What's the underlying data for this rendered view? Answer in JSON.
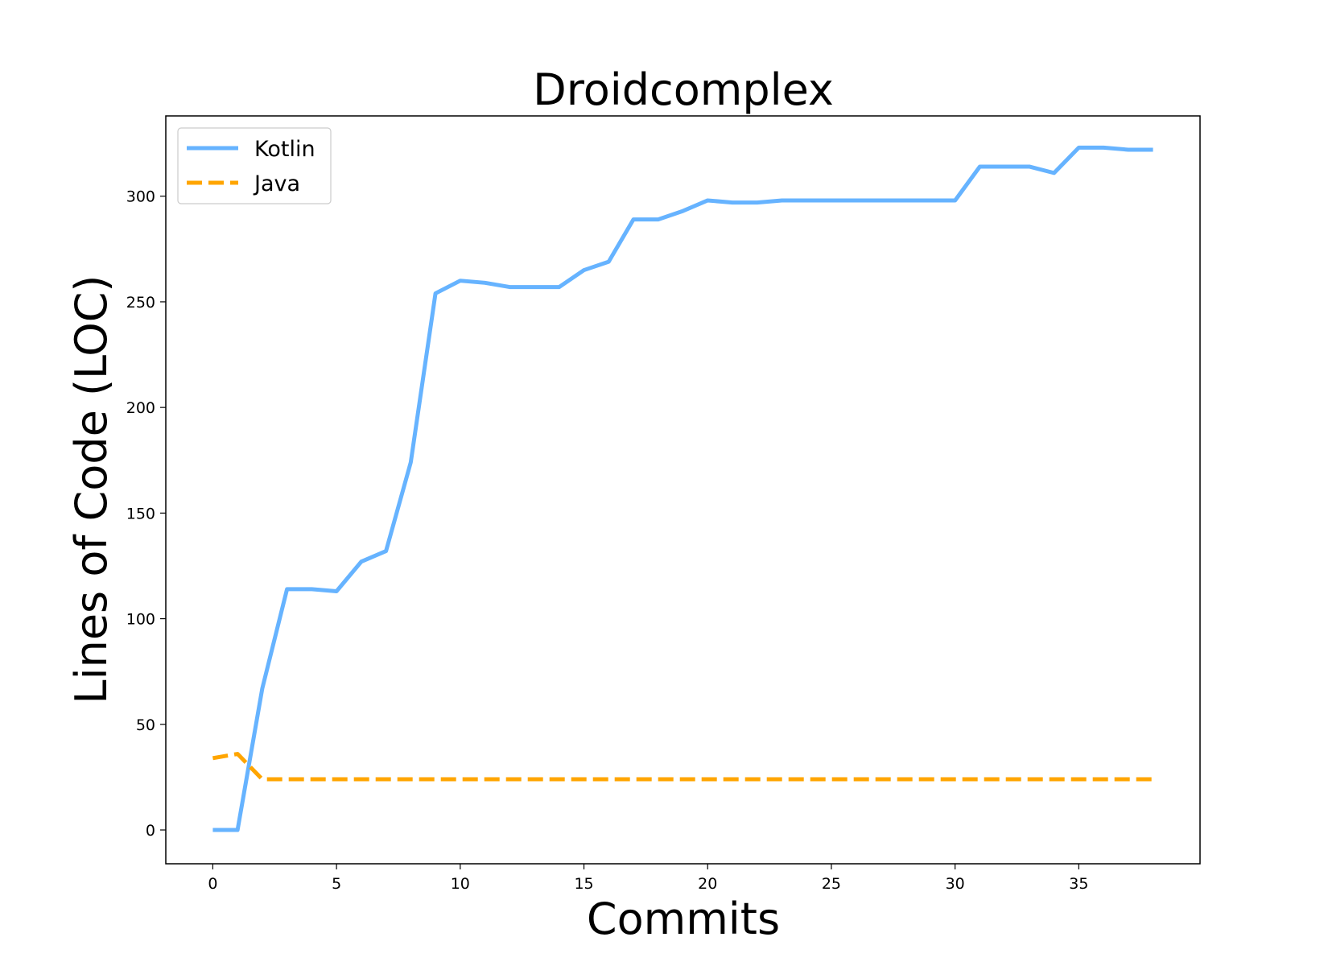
{
  "chart_data": {
    "type": "line",
    "title": "Droidcomplex",
    "xlabel": "Commits",
    "ylabel": "Lines of Code (LOC)",
    "xlim": [
      -1.9,
      39.9
    ],
    "ylim": [
      -16,
      338
    ],
    "xticks": [
      0,
      5,
      10,
      15,
      20,
      25,
      30,
      35
    ],
    "yticks": [
      0,
      50,
      100,
      150,
      200,
      250,
      300
    ],
    "grid": false,
    "legend_position": "upper-left",
    "x": [
      0,
      1,
      2,
      3,
      4,
      5,
      6,
      7,
      8,
      9,
      10,
      11,
      12,
      13,
      14,
      15,
      16,
      17,
      18,
      19,
      20,
      21,
      22,
      23,
      24,
      25,
      26,
      27,
      28,
      29,
      30,
      31,
      32,
      33,
      34,
      35,
      36,
      37,
      38
    ],
    "series": [
      {
        "name": "Kotlin",
        "color": "#66b3ff",
        "style": "solid",
        "values": [
          0,
          0,
          67,
          114,
          114,
          113,
          127,
          132,
          174,
          254,
          260,
          259,
          257,
          257,
          257,
          265,
          269,
          289,
          289,
          293,
          298,
          297,
          297,
          298,
          298,
          298,
          298,
          298,
          298,
          298,
          298,
          314,
          314,
          314,
          311,
          323,
          323,
          322,
          322
        ]
      },
      {
        "name": "Java",
        "color": "#ffa500",
        "style": "dashed",
        "values": [
          34,
          36,
          24,
          24,
          24,
          24,
          24,
          24,
          24,
          24,
          24,
          24,
          24,
          24,
          24,
          24,
          24,
          24,
          24,
          24,
          24,
          24,
          24,
          24,
          24,
          24,
          24,
          24,
          24,
          24,
          24,
          24,
          24,
          24,
          24,
          24,
          24,
          24,
          24
        ]
      }
    ]
  }
}
